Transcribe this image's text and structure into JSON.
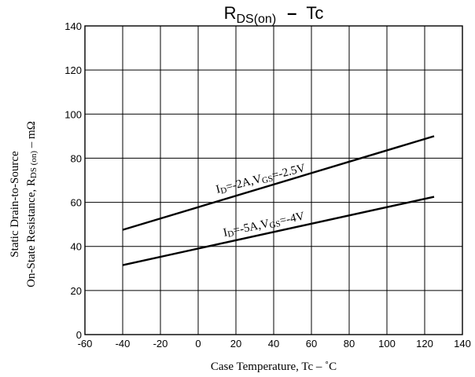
{
  "chart_data": {
    "type": "line",
    "title": {
      "main": "R",
      "sub": "DS(on)",
      "dash": "–",
      "tail": "Tc"
    },
    "xlabel": "Case Temperature, Tc  –  ˚C",
    "ylabel": {
      "line1": "Static Drain-to-Source",
      "line2_main": "On-State Resistance, R",
      "line2_sub": "DS (on)",
      "line2_tail": "  –  mΩ"
    },
    "xlim": [
      -60,
      140
    ],
    "ylim": [
      0,
      140
    ],
    "x_ticks": [
      -60,
      -40,
      -20,
      0,
      20,
      40,
      60,
      80,
      100,
      120,
      140
    ],
    "y_ticks": [
      0,
      20,
      40,
      60,
      80,
      100,
      120,
      140
    ],
    "grid": true,
    "series": [
      {
        "name": "ID=-2A,VGS=-2.5V",
        "label": {
          "I": "I",
          "D": "D",
          "mid": "=-2A,V",
          "GS": "GS",
          "tail": "=-2.5V"
        },
        "x": [
          -40,
          125
        ],
        "y": [
          47.5,
          90
        ]
      },
      {
        "name": "ID=-5A,VGS=-4V",
        "label": {
          "I": "I",
          "D": "D",
          "mid": "=-5A,V",
          "GS": "GS",
          "tail": "=-4V"
        },
        "x": [
          -40,
          125
        ],
        "y": [
          31.5,
          62.5
        ]
      }
    ]
  }
}
